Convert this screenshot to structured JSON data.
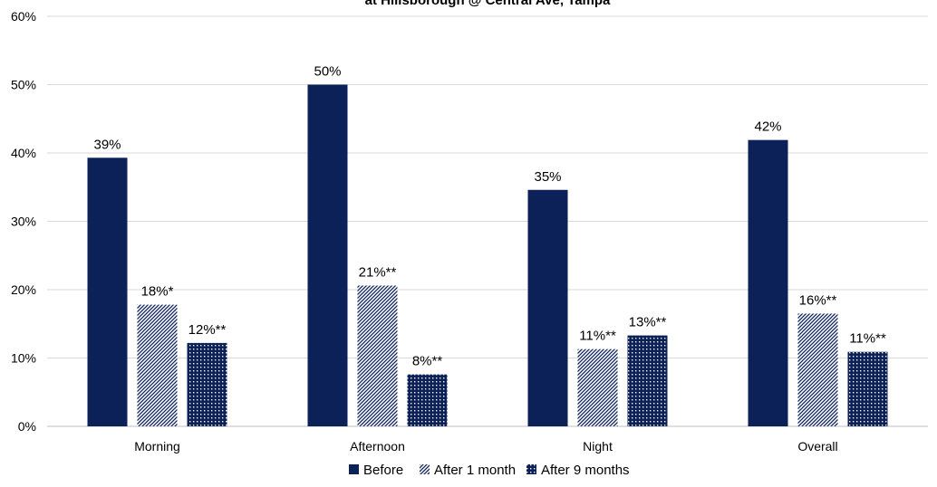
{
  "chart_data": {
    "type": "bar",
    "title": "at Hillsborough @ Central Ave, Tampa",
    "categories": [
      "Morning",
      "Afternoon",
      "Night",
      "Overall"
    ],
    "ylim": [
      0,
      60
    ],
    "yticks": [
      "0%",
      "10%",
      "20%",
      "30%",
      "40%",
      "50%",
      "60%"
    ],
    "grid": true,
    "legend_position": "bottom",
    "series": [
      {
        "name": "Before",
        "pattern": "solid",
        "color": "#0b2158",
        "values": [
          39.3,
          50.0,
          34.6,
          41.9
        ],
        "labels": [
          "39%",
          "50%",
          "35%",
          "42%"
        ]
      },
      {
        "name": "After 1 month",
        "pattern": "diagonal-hatch",
        "color": "#0b2158",
        "values": [
          17.8,
          20.6,
          11.3,
          16.5
        ],
        "labels": [
          "18%*",
          "21%**",
          "11%**",
          "16%**"
        ]
      },
      {
        "name": "After 9 months",
        "pattern": "dotted-grid",
        "color": "#0b2158",
        "values": [
          12.2,
          7.6,
          13.3,
          10.9
        ],
        "labels": [
          "12%**",
          "8%**",
          "13%**",
          "11%**"
        ]
      }
    ]
  }
}
